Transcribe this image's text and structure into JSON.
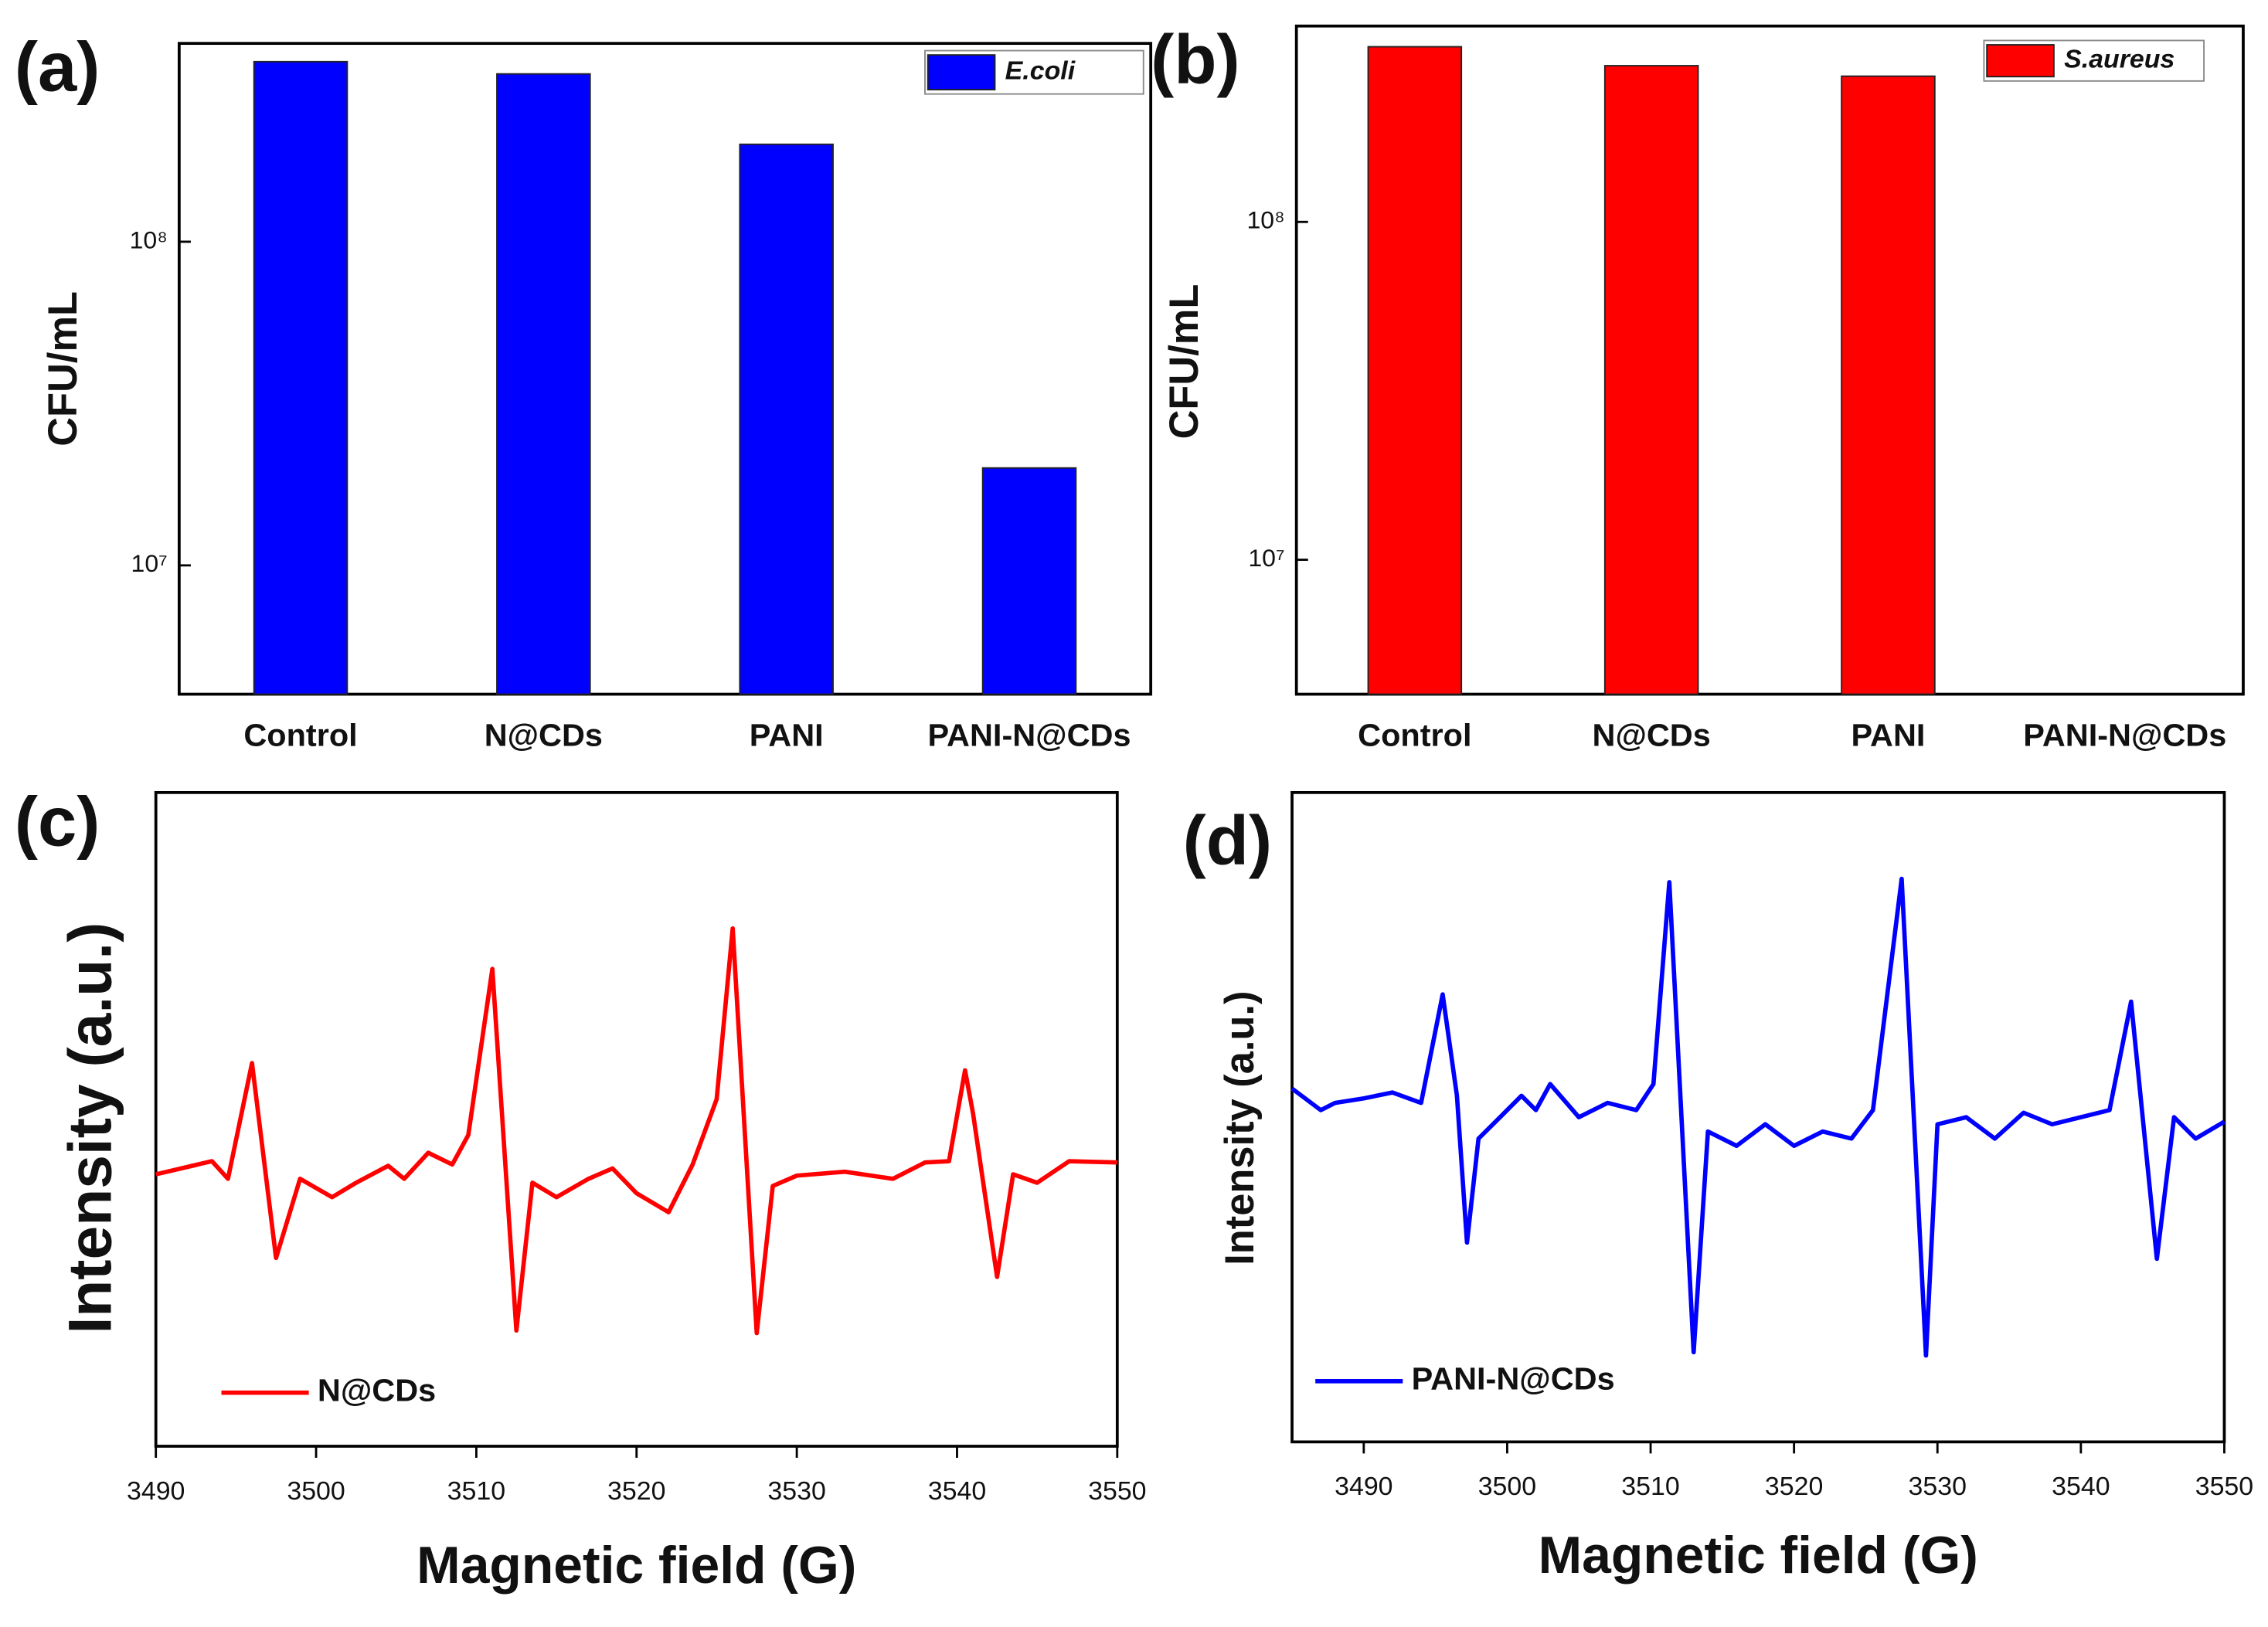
{
  "chart_data": [
    {
      "type": "bar",
      "panel_label": "(a)",
      "y_label": "CFU/mL",
      "log_y": true,
      "categories": [
        "Control",
        "N@CDs",
        "PANI",
        "PANI-N@CDs"
      ],
      "series": [
        {
          "name": "E.coli",
          "color": "#0000ff",
          "values": [
            360000000,
            330000000,
            200000000,
            20000000
          ]
        }
      ],
      "ylim": [
        4000000,
        410000000
      ],
      "yticks": [
        {
          "value": 10000000,
          "label": "10⁷"
        },
        {
          "value": 100000000,
          "label": "10⁸"
        }
      ],
      "legend": "upper right"
    },
    {
      "type": "bar",
      "panel_label": "(b)",
      "y_label": "CFU/mL",
      "log_y": true,
      "categories": [
        "Control",
        "N@CDs",
        "PANI",
        "PANI-N@CDs"
      ],
      "series": [
        {
          "name": "S.aureus",
          "color": "#ff0000",
          "values": [
            330000000,
            290000000,
            270000000,
            null
          ]
        }
      ],
      "ylim": [
        4000000,
        380000000
      ],
      "yticks": [
        {
          "value": 10000000,
          "label": "10⁷"
        },
        {
          "value": 100000000,
          "label": "10⁸"
        }
      ],
      "legend": "upper right"
    },
    {
      "type": "line",
      "panel_label": "(c)",
      "x_label": "Magnetic field (G)",
      "y_label": "Intensity (a.u.)",
      "x": [
        3490,
        3493.5,
        3494.5,
        3496,
        3497.5,
        3499,
        3501,
        3502.5,
        3504.5,
        3505.5,
        3507,
        3508.5,
        3509.5,
        3511,
        3512.5,
        3513.5,
        3515,
        3517,
        3518.5,
        3520,
        3522,
        3523.5,
        3525,
        3526,
        3527.5,
        3528.5,
        3530,
        3533,
        3536,
        3538,
        3539.5,
        3540.5,
        3541,
        3542.5,
        3543.5,
        3545,
        3547,
        3550
      ],
      "series": [
        {
          "name": "N@CDs",
          "color": "#ff0000",
          "values": [
            41.6,
            43.6,
            40.9,
            58.6,
            28.8,
            40.9,
            38.1,
            40.3,
            42.9,
            40.9,
            44.9,
            43.1,
            47.6,
            73.0,
            17.7,
            40.3,
            38.1,
            40.9,
            42.5,
            38.7,
            35.8,
            43.1,
            53.1,
            79.2,
            17.3,
            39.8,
            41.4,
            42.0,
            40.9,
            43.4,
            43.6,
            57.5,
            50.9,
            25.9,
            41.6,
            40.3,
            43.6,
            43.4
          ]
        }
      ],
      "xlim": [
        3490,
        3550
      ],
      "xticks": [
        3490,
        3500,
        3510,
        3520,
        3530,
        3540,
        3550
      ],
      "ylim": [
        0,
        100
      ],
      "legend": "lower left"
    },
    {
      "type": "line",
      "panel_label": "(d)",
      "x_label": "Magnetic field (G)",
      "y_label": "Intensity (a.u.)",
      "x": [
        3485,
        3487,
        3488,
        3490,
        3492,
        3494,
        3495.5,
        3496.5,
        3497.2,
        3498,
        3499.5,
        3501,
        3502,
        3503,
        3505,
        3507,
        3509,
        3510.2,
        3511.3,
        3513,
        3514,
        3516,
        3518,
        3520,
        3522,
        3524,
        3525.5,
        3527.5,
        3529.2,
        3530,
        3532,
        3534,
        3536,
        3538,
        3540,
        3542,
        3543.5,
        3545.3,
        3546.5,
        3548,
        3550
      ],
      "series": [
        {
          "name": "PANI-N@CDs",
          "color": "#0000ff",
          "values": [
            54.4,
            51.1,
            52.2,
            52.9,
            53.8,
            52.2,
            68.9,
            53.3,
            30.7,
            46.7,
            50,
            53.3,
            51.1,
            55.1,
            50,
            52.2,
            51.1,
            55.1,
            86.2,
            13.8,
            47.8,
            45.6,
            48.9,
            45.6,
            47.8,
            46.7,
            51.1,
            86.7,
            13.3,
            48.9,
            50,
            46.7,
            50.7,
            48.9,
            50,
            51.1,
            67.8,
            28.2,
            50,
            46.7,
            49.3
          ]
        }
      ],
      "xlim": [
        3485,
        3550
      ],
      "xticks": [
        3490,
        3500,
        3510,
        3520,
        3530,
        3540,
        3550
      ],
      "ylim": [
        0,
        100
      ],
      "legend": "lower left"
    }
  ]
}
